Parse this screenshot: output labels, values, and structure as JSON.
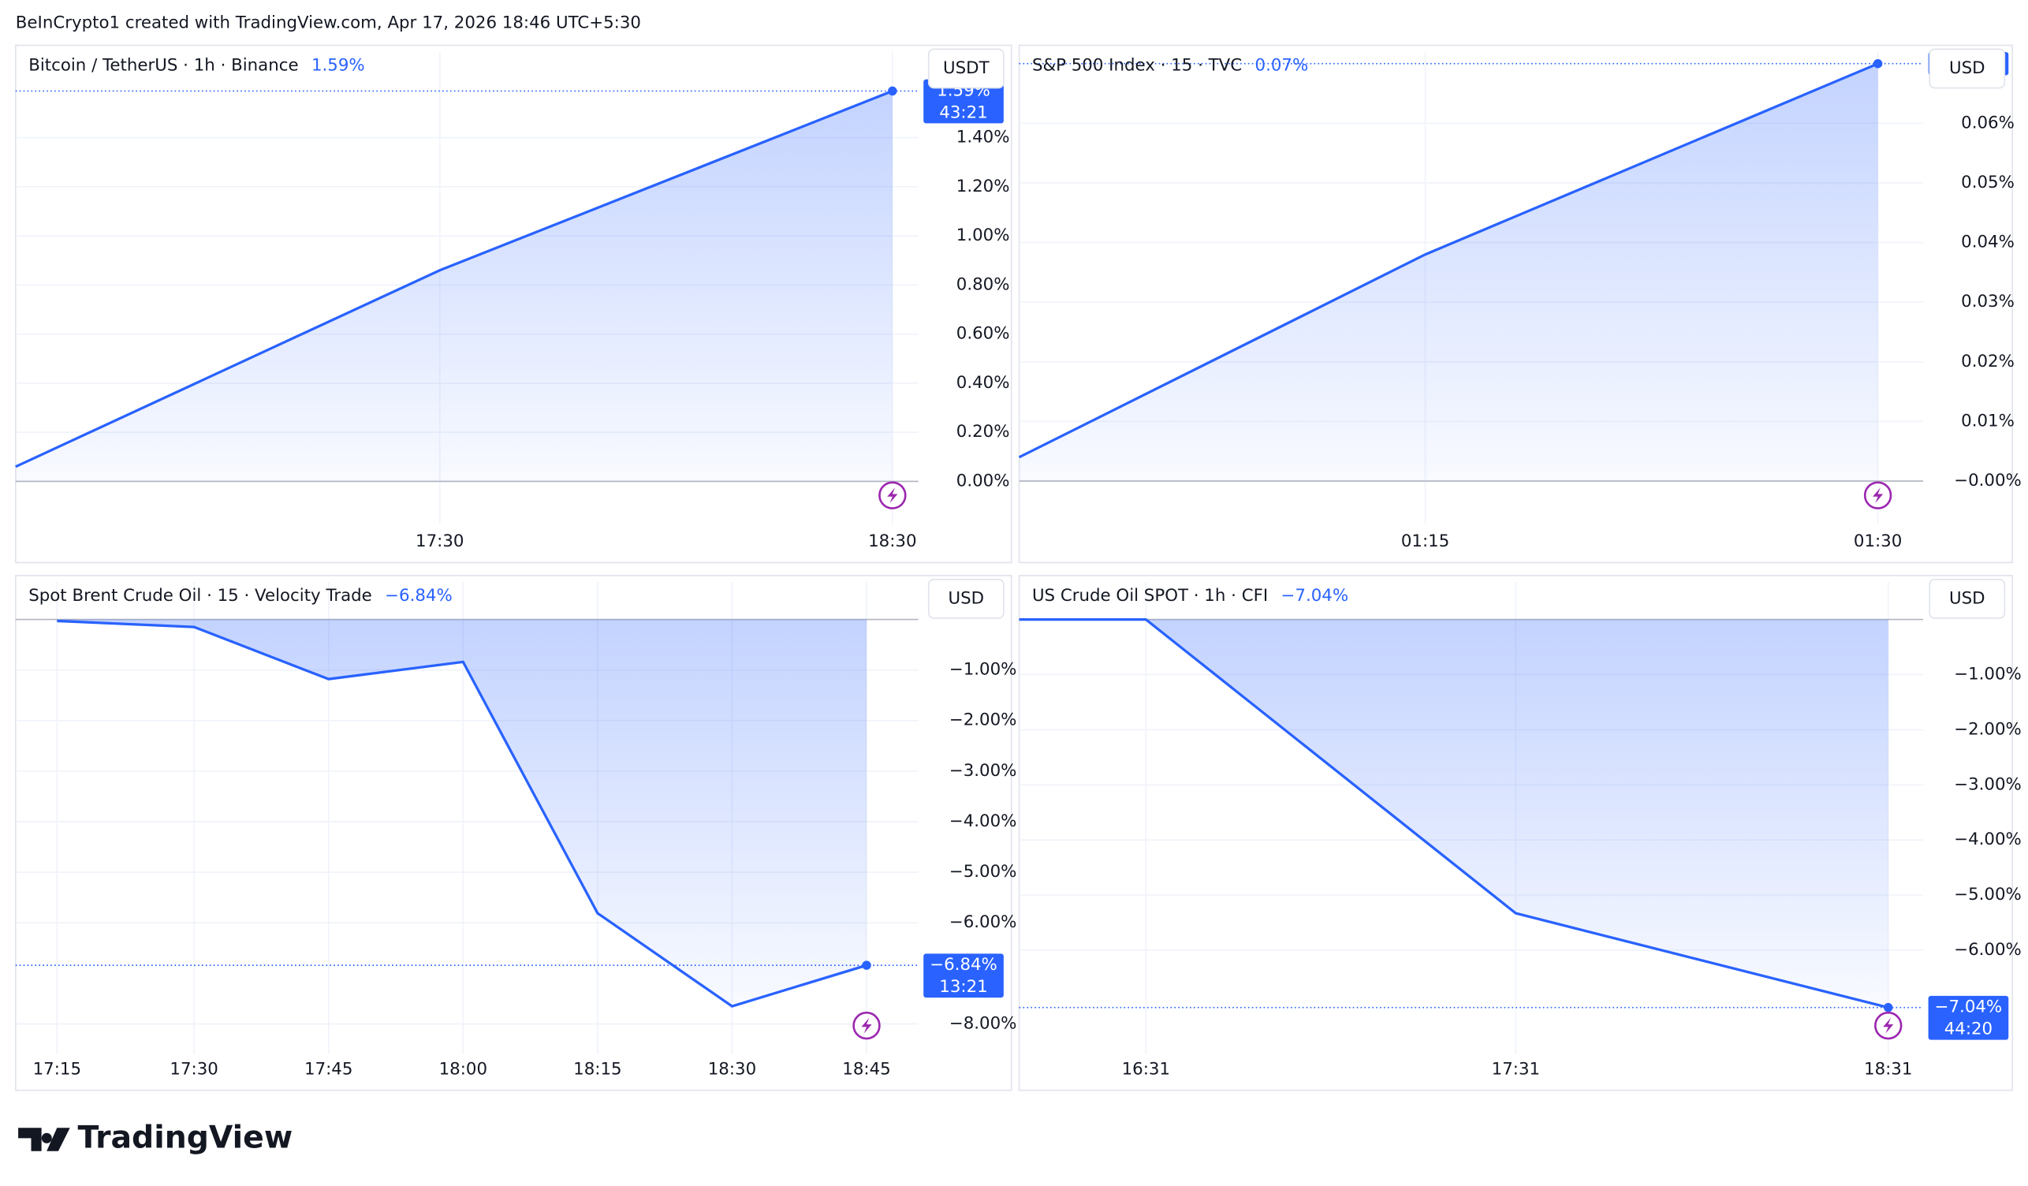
{
  "header": {
    "text": "BeInCrypto1 created with TradingView.com, Apr 17, 2026 18:46 UTC+5:30"
  },
  "footer": {
    "logo": "TradingView"
  },
  "chart_data": [
    {
      "type": "line",
      "title": "Bitcoin / TetherUS · 1h · Binance",
      "change": {
        "value": 1.59,
        "label": "1.59%"
      },
      "unit": "USDT",
      "countdown": "43:21",
      "categories": [
        null,
        "17:30",
        "18:30"
      ],
      "values": [
        0.06,
        0.86,
        1.59
      ],
      "color": "#2962ff",
      "ylim": [
        -0.12,
        1.75
      ],
      "yticks": [
        {
          "value": 0,
          "label": "0.00%"
        },
        {
          "value": 0.2,
          "label": "0.20%"
        },
        {
          "value": 0.4,
          "label": "0.40%"
        },
        {
          "value": 0.6,
          "label": "0.60%"
        },
        {
          "value": 0.8,
          "label": "0.80%"
        },
        {
          "value": 1,
          "label": "1.00%"
        },
        {
          "value": 1.2,
          "label": "1.20%"
        },
        {
          "value": 1.4,
          "label": "1.40%"
        }
      ],
      "grid": true
    },
    {
      "type": "line",
      "title": "S&P 500 Index · 15 · TVC",
      "change": {
        "value": 0.07,
        "label": "0.07%"
      },
      "unit": "USD",
      "categories": [
        null,
        "01:15",
        "01:30"
      ],
      "values": [
        0.004,
        0.038,
        0.07
      ],
      "color": "#2962ff",
      "ylim": [
        -0.005,
        0.072
      ],
      "yticks": [
        {
          "value": 0,
          "label": "−0.00%"
        },
        {
          "value": 0.01,
          "label": "0.01%"
        },
        {
          "value": 0.02,
          "label": "0.02%"
        },
        {
          "value": 0.03,
          "label": "0.03%"
        },
        {
          "value": 0.04,
          "label": "0.04%"
        },
        {
          "value": 0.05,
          "label": "0.05%"
        },
        {
          "value": 0.06,
          "label": "0.06%"
        }
      ],
      "grid": true
    },
    {
      "type": "line",
      "title": "Spot Brent Crude Oil · 15 · Velocity Trade",
      "change": {
        "value": -6.84,
        "label": "−6.84%"
      },
      "unit": "USD",
      "countdown": "13:21",
      "categories": [
        "17:15",
        "17:30",
        "17:45",
        "18:00",
        "18:15",
        "18:30",
        "18:45"
      ],
      "values": [
        -0.03,
        -0.15,
        -1.18,
        -0.84,
        -5.81,
        -7.65,
        -6.84
      ],
      "color": "#2962ff",
      "ylim": [
        -8.34,
        0.74
      ],
      "yticks": [
        {
          "value": -1,
          "label": "−1.00%"
        },
        {
          "value": -2,
          "label": "−2.00%"
        },
        {
          "value": -3,
          "label": "−3.00%"
        },
        {
          "value": -4,
          "label": "−4.00%"
        },
        {
          "value": -5,
          "label": "−5.00%"
        },
        {
          "value": -6,
          "label": "−6.00%"
        },
        {
          "value": -8,
          "label": "−8.00%"
        }
      ],
      "grid": true
    },
    {
      "type": "line",
      "title": "US Crude Oil SPOT · 1h · CFI",
      "change": {
        "value": -7.04,
        "label": "−7.04%"
      },
      "unit": "USD",
      "countdown": "44:20",
      "categories": [
        null,
        "16:31",
        "17:31",
        "18:31"
      ],
      "values": [
        0,
        0,
        -5.33,
        -7.04
      ],
      "color": "#2962ff",
      "ylim": [
        -7.65,
        0.68
      ],
      "yticks": [
        {
          "value": -1,
          "label": "−1.00%"
        },
        {
          "value": -2,
          "label": "−2.00%"
        },
        {
          "value": -3,
          "label": "−3.00%"
        },
        {
          "value": -4,
          "label": "−4.00%"
        },
        {
          "value": -5,
          "label": "−5.00%"
        },
        {
          "value": -6,
          "label": "−6.00%"
        }
      ],
      "grid": true
    }
  ]
}
